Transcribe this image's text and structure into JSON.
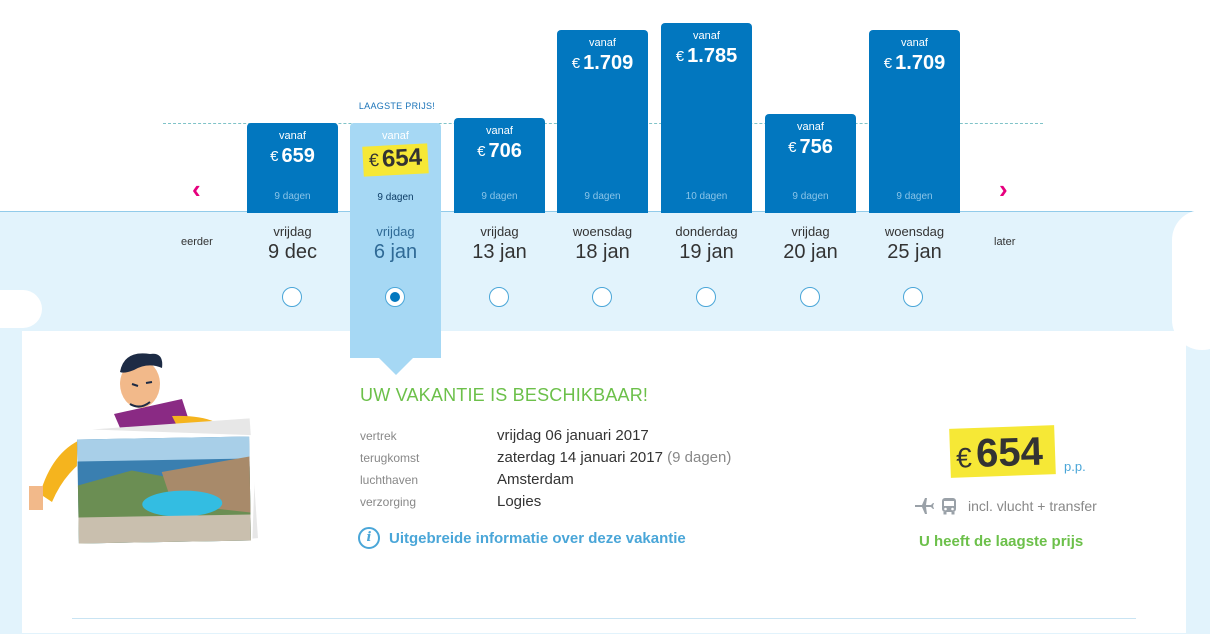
{
  "calendar": {
    "lowest_tag": "LAAGSTE PRIJS!",
    "earlier": "eerder",
    "later": "later",
    "vanaf_label": "vanaf",
    "currency": "€",
    "selected_index": 1,
    "options": [
      {
        "price": "659",
        "days": "9 dagen",
        "weekday": "vrijdag",
        "date": "9 dec"
      },
      {
        "price": "654",
        "days": "9 dagen",
        "weekday": "vrijdag",
        "date": "6 jan"
      },
      {
        "price": "706",
        "days": "9 dagen",
        "weekday": "vrijdag",
        "date": "13 jan"
      },
      {
        "price": "1.709",
        "days": "9 dagen",
        "weekday": "woensdag",
        "date": "18 jan"
      },
      {
        "price": "1.785",
        "days": "10 dagen",
        "weekday": "donderdag",
        "date": "19 jan"
      },
      {
        "price": "756",
        "days": "9 dagen",
        "weekday": "vrijdag",
        "date": "20 jan"
      },
      {
        "price": "1.709",
        "days": "9 dagen",
        "weekday": "woensdag",
        "date": "25 jan"
      }
    ]
  },
  "details": {
    "headline": "UW VAKANTIE IS BESCHIKBAAR!",
    "rows": [
      {
        "label": "vertrek",
        "value": "vrijdag 06 januari 2017",
        "extra": ""
      },
      {
        "label": "terugkomst",
        "value": "zaterdag 14 januari 2017",
        "extra": "(9 dagen)"
      },
      {
        "label": "luchthaven",
        "value": "Amsterdam",
        "extra": ""
      },
      {
        "label": "verzorging",
        "value": "Logies",
        "extra": ""
      }
    ],
    "info_link": "Uitgebreide informatie over deze vakantie"
  },
  "price_box": {
    "currency": "€",
    "amount": "654",
    "per_person": "p.p.",
    "includes": "incl. vlucht + transfer",
    "lowest_note": "U heeft de laagste prijs"
  }
}
